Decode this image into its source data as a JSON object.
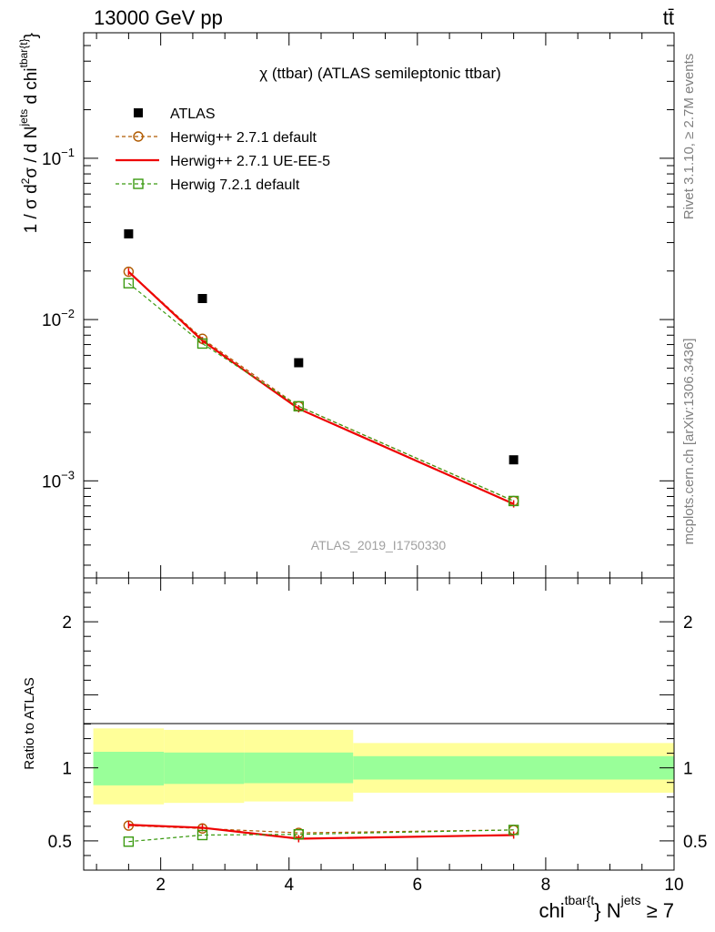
{
  "header": {
    "energy_label": "13000 GeV pp",
    "process_label": "tt̄"
  },
  "side": {
    "rivet_label": "Rivet 3.1.10, ≥ 2.7M events",
    "mcplots_label": "mcplots.cern.ch [arXiv:1306.3436]"
  },
  "chart_data": [
    {
      "type": "scatter",
      "title": "χ (ttbar) (ATLAS semileptonic ttbar)",
      "watermark": "ATLAS_2019_I1750330",
      "ylabel_parts": {
        "pre": "1 / σ d",
        "sup1": "2",
        "mid": "σ / d N",
        "sup2": "jets",
        "post": " d chi",
        "sup3": "tbar{t}",
        "close": "}"
      },
      "yscale": "log",
      "ylim": [
        0.00025,
        0.6
      ],
      "xlim": [
        0.8,
        10
      ],
      "ytick_labels": [
        {
          "value": 0.1,
          "base": "10",
          "exp": "−1"
        },
        {
          "value": 0.01,
          "base": "10",
          "exp": "−2"
        },
        {
          "value": 0.001,
          "base": "10",
          "exp": "−3"
        }
      ],
      "series": [
        {
          "name": "ATLAS",
          "color": "#000000",
          "marker": "square-filled",
          "x": [
            1.5,
            2.65,
            4.15,
            7.5
          ],
          "y": [
            0.034,
            0.0135,
            0.0054,
            0.00135
          ]
        },
        {
          "name": "Herwig++ 2.7.1 default",
          "color": "#b05a00",
          "marker": "circle-open",
          "line": "dashed",
          "x": [
            1.5,
            2.65,
            4.15,
            7.5
          ],
          "y": [
            0.0198,
            0.0076,
            0.0029,
            0.00075
          ]
        },
        {
          "name": "Herwig++ 2.7.1 UE-EE-5",
          "color": "#ee0000",
          "marker": "none",
          "line": "solid",
          "x": [
            1.5,
            2.65,
            4.15,
            7.5
          ],
          "y": [
            0.0198,
            0.0074,
            0.0028,
            0.00072
          ]
        },
        {
          "name": "Herwig 7.2.1 default",
          "color": "#3a9a10",
          "marker": "square-open",
          "line": "dashed",
          "x": [
            1.5,
            2.65,
            4.15,
            7.5
          ],
          "y": [
            0.0168,
            0.0071,
            0.0029,
            0.00075
          ]
        }
      ],
      "legend_position": "top-left"
    },
    {
      "type": "line",
      "ylabel": "Ratio to ATLAS",
      "ylim": [
        0.3,
        2.3
      ],
      "xlim": [
        0.8,
        10
      ],
      "yticks": [
        "0.5",
        "1",
        "2"
      ],
      "xticks": [
        "2",
        "4",
        "6",
        "8",
        "10"
      ],
      "xlabel_parts": {
        "pre": "chi",
        "sup1": "tbar{t",
        "mid": "} N",
        "sup2": "jets",
        "post": " ≥ 7"
      },
      "bands": [
        {
          "x0": 0.95,
          "x1": 2.05,
          "yellow": [
            0.75,
            1.27
          ],
          "green": [
            0.88,
            1.11
          ]
        },
        {
          "x0": 2.05,
          "x1": 3.3,
          "yellow": [
            0.76,
            1.26
          ],
          "green": [
            0.89,
            1.105
          ]
        },
        {
          "x0": 3.3,
          "x1": 5.0,
          "yellow": [
            0.77,
            1.26
          ],
          "green": [
            0.895,
            1.105
          ]
        },
        {
          "x0": 5.0,
          "x1": 10.0,
          "yellow": [
            0.83,
            1.17
          ],
          "green": [
            0.92,
            1.08
          ]
        }
      ],
      "series": [
        {
          "name": "Herwig++ 2.7.1 default",
          "color": "#b05a00",
          "marker": "circle-open",
          "line": "dashed",
          "x": [
            1.5,
            2.65,
            4.15,
            7.5
          ],
          "y": [
            0.605,
            0.585,
            0.555,
            0.575
          ]
        },
        {
          "name": "Herwig++ 2.7.1 UE-EE-5",
          "color": "#ee0000",
          "marker": "none",
          "line": "solid",
          "x": [
            1.5,
            2.65,
            4.15,
            7.5
          ],
          "y": [
            0.61,
            0.59,
            0.515,
            0.54
          ]
        },
        {
          "name": "Herwig 7.2.1 default",
          "color": "#3a9a10",
          "marker": "square-open",
          "line": "dashed",
          "x": [
            1.5,
            2.65,
            4.15,
            7.5
          ],
          "y": [
            0.495,
            0.54,
            0.545,
            0.575
          ]
        }
      ]
    }
  ]
}
